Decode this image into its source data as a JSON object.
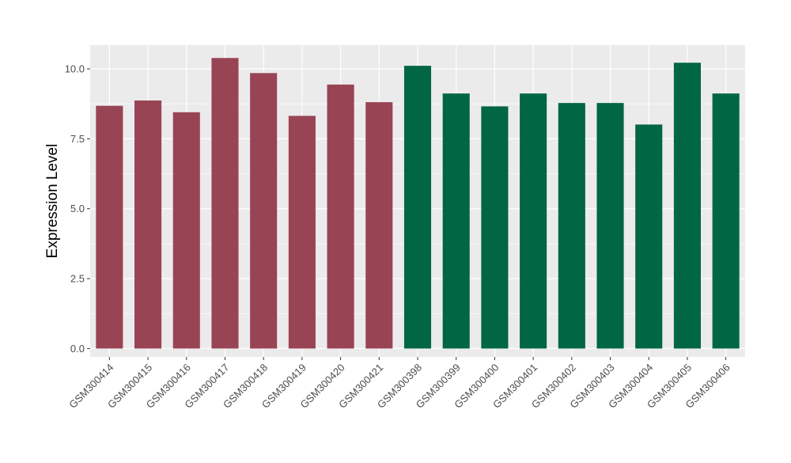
{
  "chart_data": {
    "type": "bar",
    "title": "",
    "xlabel": "",
    "ylabel": "Expression Level",
    "ylim": [
      -0.3,
      10.85
    ],
    "yticks": [
      0.0,
      2.5,
      5.0,
      7.5,
      10.0
    ],
    "ytick_labels": [
      "0.0",
      "2.5",
      "5.0",
      "7.5",
      "10.0"
    ],
    "grid": true,
    "legend": "none",
    "categories": [
      "GSM300414",
      "GSM300415",
      "GSM300416",
      "GSM300417",
      "GSM300418",
      "GSM300419",
      "GSM300420",
      "GSM300421",
      "GSM300398",
      "GSM300399",
      "GSM300400",
      "GSM300401",
      "GSM300402",
      "GSM300403",
      "GSM300404",
      "GSM300405",
      "GSM300406"
    ],
    "values": [
      8.68,
      8.87,
      8.45,
      10.39,
      9.85,
      8.32,
      9.44,
      8.81,
      10.11,
      9.12,
      8.66,
      9.12,
      8.78,
      8.78,
      8.01,
      10.22,
      9.12
    ],
    "bar_colors": [
      "#994455",
      "#994455",
      "#994455",
      "#994455",
      "#994455",
      "#994455",
      "#994455",
      "#994455",
      "#006644",
      "#006644",
      "#006644",
      "#006644",
      "#006644",
      "#006644",
      "#006644",
      "#006644",
      "#006644"
    ],
    "panel_background": "#EBEBEB",
    "grid_color": "#FFFFFF"
  }
}
